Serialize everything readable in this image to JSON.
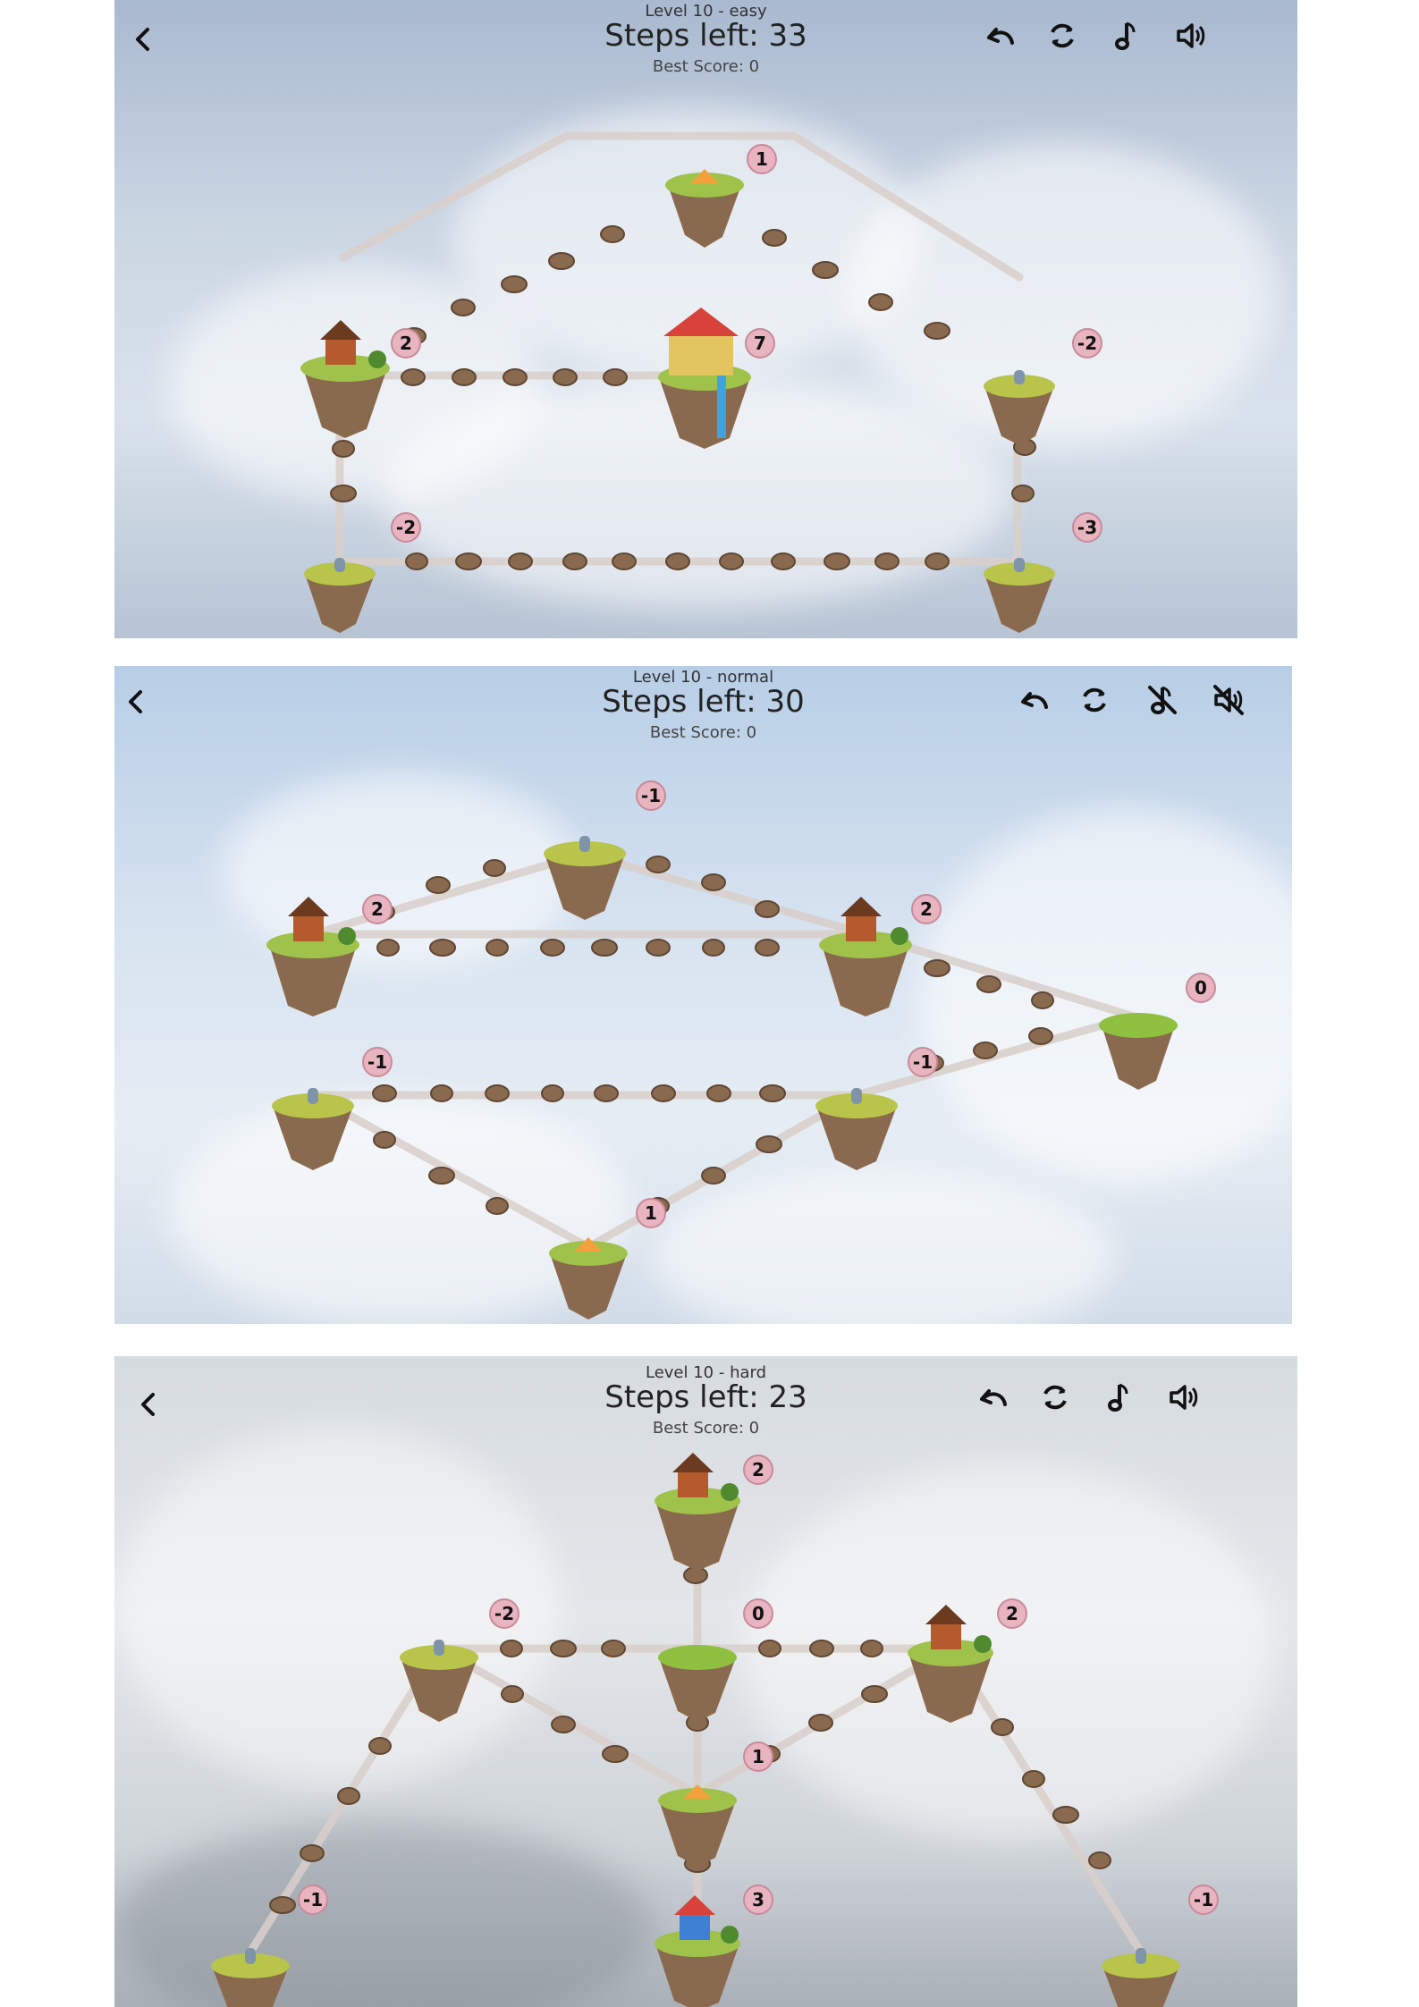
{
  "screens": [
    {
      "level_label": "Level 10 - easy",
      "steps_label": "Steps left: 33",
      "best_label": "Best Score: 0",
      "music": "on",
      "sound": "on",
      "icons": [
        "back-arrow-icon",
        "undo-icon",
        "restart-icon",
        "music-note-icon",
        "speaker-icon"
      ],
      "badges": [
        "1",
        "2",
        "7",
        "-2",
        "-2",
        "-3"
      ]
    },
    {
      "level_label": "Level 10 - normal",
      "steps_label": "Steps left: 30",
      "best_label": "Best Score: 0",
      "music": "off",
      "sound": "off",
      "icons": [
        "back-arrow-icon",
        "undo-icon",
        "restart-icon",
        "music-off-icon",
        "speaker-muted-icon"
      ],
      "badges": [
        "-1",
        "2",
        "2",
        "0",
        "-1",
        "-1",
        "1"
      ]
    },
    {
      "level_label": "Level 10 - hard",
      "steps_label": "Steps left: 23",
      "best_label": "Best Score: 0",
      "music": "on",
      "sound": "on",
      "icons": [
        "back-arrow-icon",
        "undo-icon",
        "restart-icon",
        "music-note-icon",
        "speaker-icon"
      ],
      "badges": [
        "2",
        "-2",
        "0",
        "2",
        "1",
        "-1",
        "3",
        "-1"
      ]
    }
  ],
  "colors": {
    "badge_fill": "#e8b4c0",
    "badge_stroke": "#c88a99",
    "rock": "#8a6a4f",
    "grass": "#9fc24a",
    "path": "#d9cfca"
  }
}
